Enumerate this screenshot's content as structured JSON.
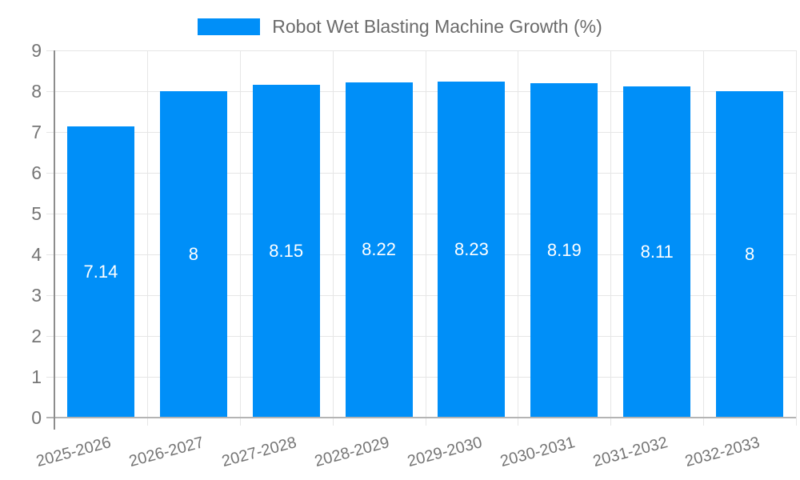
{
  "legend": {
    "label": "Robot Wet Blasting Machine Growth (%)",
    "swatch_color": "#008ff8"
  },
  "chart_data": {
    "type": "bar",
    "title": "Robot Wet Blasting Machine Growth (%)",
    "categories": [
      "2025-2026",
      "2026-2027",
      "2027-2028",
      "2028-2029",
      "2029-2030",
      "2030-2031",
      "2031-2032",
      "2032-2033"
    ],
    "values": [
      7.14,
      8,
      8.15,
      8.22,
      8.23,
      8.19,
      8.11,
      8
    ],
    "bar_labels": [
      "7.14",
      "8",
      "8.15",
      "8.22",
      "8.23",
      "8.19",
      "8.11",
      "8"
    ],
    "xlabel": "",
    "ylabel": "",
    "ylim": [
      0,
      9
    ],
    "y_ticks": [
      0,
      1,
      2,
      3,
      4,
      5,
      6,
      7,
      8,
      9
    ],
    "y_tick_labels": [
      "0",
      "1",
      "2",
      "3",
      "4",
      "5",
      "6",
      "7",
      "8",
      "9"
    ],
    "grid": true,
    "legend_position": "top-center",
    "bar_color": "#008ff8",
    "bar_label_color": "#ffffff",
    "gridline_color": "#e6e6e6",
    "x_axis_color": "#b4b4b4",
    "y_axis_color": "#8d8d8d",
    "tick_text_color": "#757575"
  }
}
